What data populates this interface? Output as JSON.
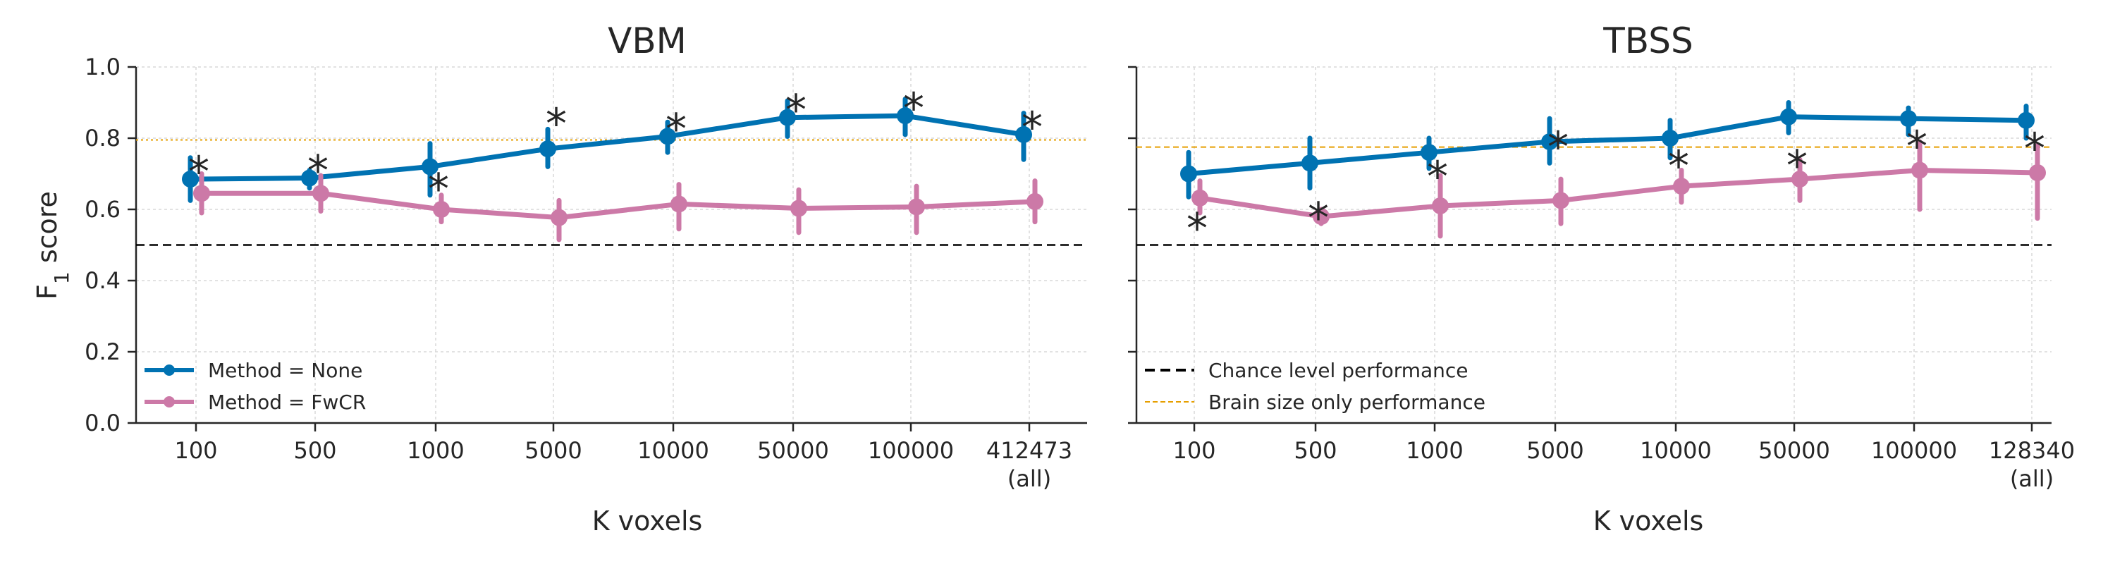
{
  "chart_data": [
    {
      "type": "line",
      "title": "VBM",
      "xlabel": "K voxels",
      "ylabel": "F1 score",
      "categories": [
        "100",
        "500",
        "1000",
        "5000",
        "10000",
        "50000",
        "100000",
        "412473\n(all)"
      ],
      "ylim": [
        0,
        1.0
      ],
      "yticks": [
        "0.0",
        "0.2",
        "0.4",
        "0.6",
        "0.8",
        "1.0"
      ],
      "grid": true,
      "series": [
        {
          "name": "Method = None",
          "color": "#0072b2",
          "values": [
            0.685,
            0.688,
            0.72,
            0.77,
            0.805,
            0.858,
            0.863,
            0.81
          ],
          "err_low": [
            0.625,
            0.66,
            0.64,
            0.72,
            0.76,
            0.805,
            0.81,
            0.74
          ],
          "err_high": [
            0.745,
            0.71,
            0.785,
            0.825,
            0.845,
            0.905,
            0.91,
            0.87
          ]
        },
        {
          "name": "Method = FwCR",
          "color": "#cc79a7",
          "values": [
            0.645,
            0.645,
            0.6,
            0.577,
            0.615,
            0.603,
            0.607,
            0.622
          ],
          "err_low": [
            0.59,
            0.595,
            0.565,
            0.515,
            0.545,
            0.535,
            0.535,
            0.565
          ],
          "err_high": [
            0.7,
            0.695,
            0.64,
            0.625,
            0.67,
            0.655,
            0.665,
            0.68
          ]
        }
      ],
      "significance": [
        1,
        1,
        1,
        1,
        1,
        1,
        1,
        1
      ],
      "significance_marker": "*",
      "reference_lines": [
        {
          "y": 0.5,
          "style": "dashed",
          "color": "#000000"
        },
        {
          "y": 0.795,
          "style": "dotted",
          "color": "#e69f00"
        }
      ],
      "legend": {
        "placement": "lower-left",
        "entries": [
          "Method = None",
          "Method = FwCR"
        ]
      }
    },
    {
      "type": "line",
      "title": "TBSS",
      "xlabel": "K voxels",
      "categories": [
        "100",
        "500",
        "1000",
        "5000",
        "10000",
        "50000",
        "100000",
        "128340\n(all)"
      ],
      "ylim": [
        0,
        1.0
      ],
      "grid": true,
      "series": [
        {
          "color": "#0072b2",
          "values": [
            0.7,
            0.73,
            0.76,
            0.79,
            0.8,
            0.86,
            0.855,
            0.85
          ],
          "err_low": [
            0.635,
            0.66,
            0.715,
            0.73,
            0.745,
            0.815,
            0.81,
            0.8
          ],
          "err_high": [
            0.76,
            0.8,
            0.8,
            0.855,
            0.85,
            0.9,
            0.885,
            0.89
          ]
        },
        {
          "color": "#cc79a7",
          "values": [
            0.632,
            0.58,
            0.61,
            0.625,
            0.665,
            0.685,
            0.71,
            0.703
          ],
          "err_low": [
            0.59,
            0.56,
            0.525,
            0.56,
            0.62,
            0.625,
            0.6,
            0.575
          ],
          "err_high": [
            0.68,
            0.6,
            0.695,
            0.685,
            0.71,
            0.74,
            0.79,
            0.78
          ]
        }
      ],
      "significance": [
        1,
        1,
        1,
        1,
        1,
        1,
        1,
        1
      ],
      "significance_marker": "*",
      "reference_lines": [
        {
          "y": 0.5,
          "style": "dashed",
          "color": "#000000"
        },
        {
          "y": 0.775,
          "style": "dashed-fine",
          "color": "#e69f00"
        }
      ],
      "legend": {
        "placement": "lower-left",
        "entries": [
          "Chance level performance",
          "Brain size only performance"
        ]
      }
    }
  ]
}
